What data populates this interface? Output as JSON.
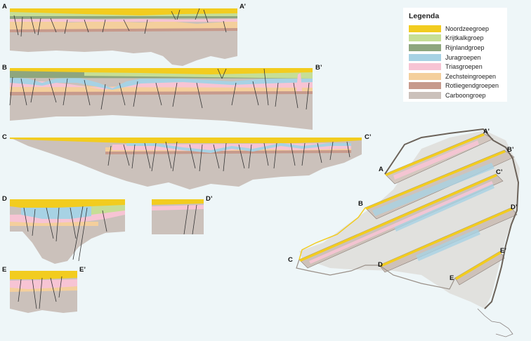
{
  "legend": {
    "title": "Legenda",
    "items": [
      {
        "label": "Noordzeegroep",
        "color": "#f2cc1f"
      },
      {
        "label": "Krijtkalkgroep",
        "color": "#c6de96"
      },
      {
        "label": "Rijnlandgroep",
        "color": "#8ea67e"
      },
      {
        "label": "Juragroepen",
        "color": "#a7d2e4"
      },
      {
        "label": "Triasgroepen",
        "color": "#f7c4d4"
      },
      {
        "label": "Zechsteingroepen",
        "color": "#f4cf9c"
      },
      {
        "label": "Rotliegendgroepen",
        "color": "#c79a8c"
      },
      {
        "label": "Carboongroep",
        "color": "#cbc1bb"
      }
    ]
  },
  "sections": [
    {
      "start": "A",
      "end": "A’"
    },
    {
      "start": "B",
      "end": "B’"
    },
    {
      "start": "C",
      "end": "C’"
    },
    {
      "start": "D",
      "end": "D’"
    },
    {
      "start": "E",
      "end": "E’"
    }
  ],
  "map_labels": {
    "A": "A",
    "A_end": "A’",
    "B": "B",
    "B_end": "B’",
    "C": "C",
    "C_end": "C’",
    "D": "D",
    "D_end": "D’",
    "E": "E",
    "E_end": "E’"
  }
}
